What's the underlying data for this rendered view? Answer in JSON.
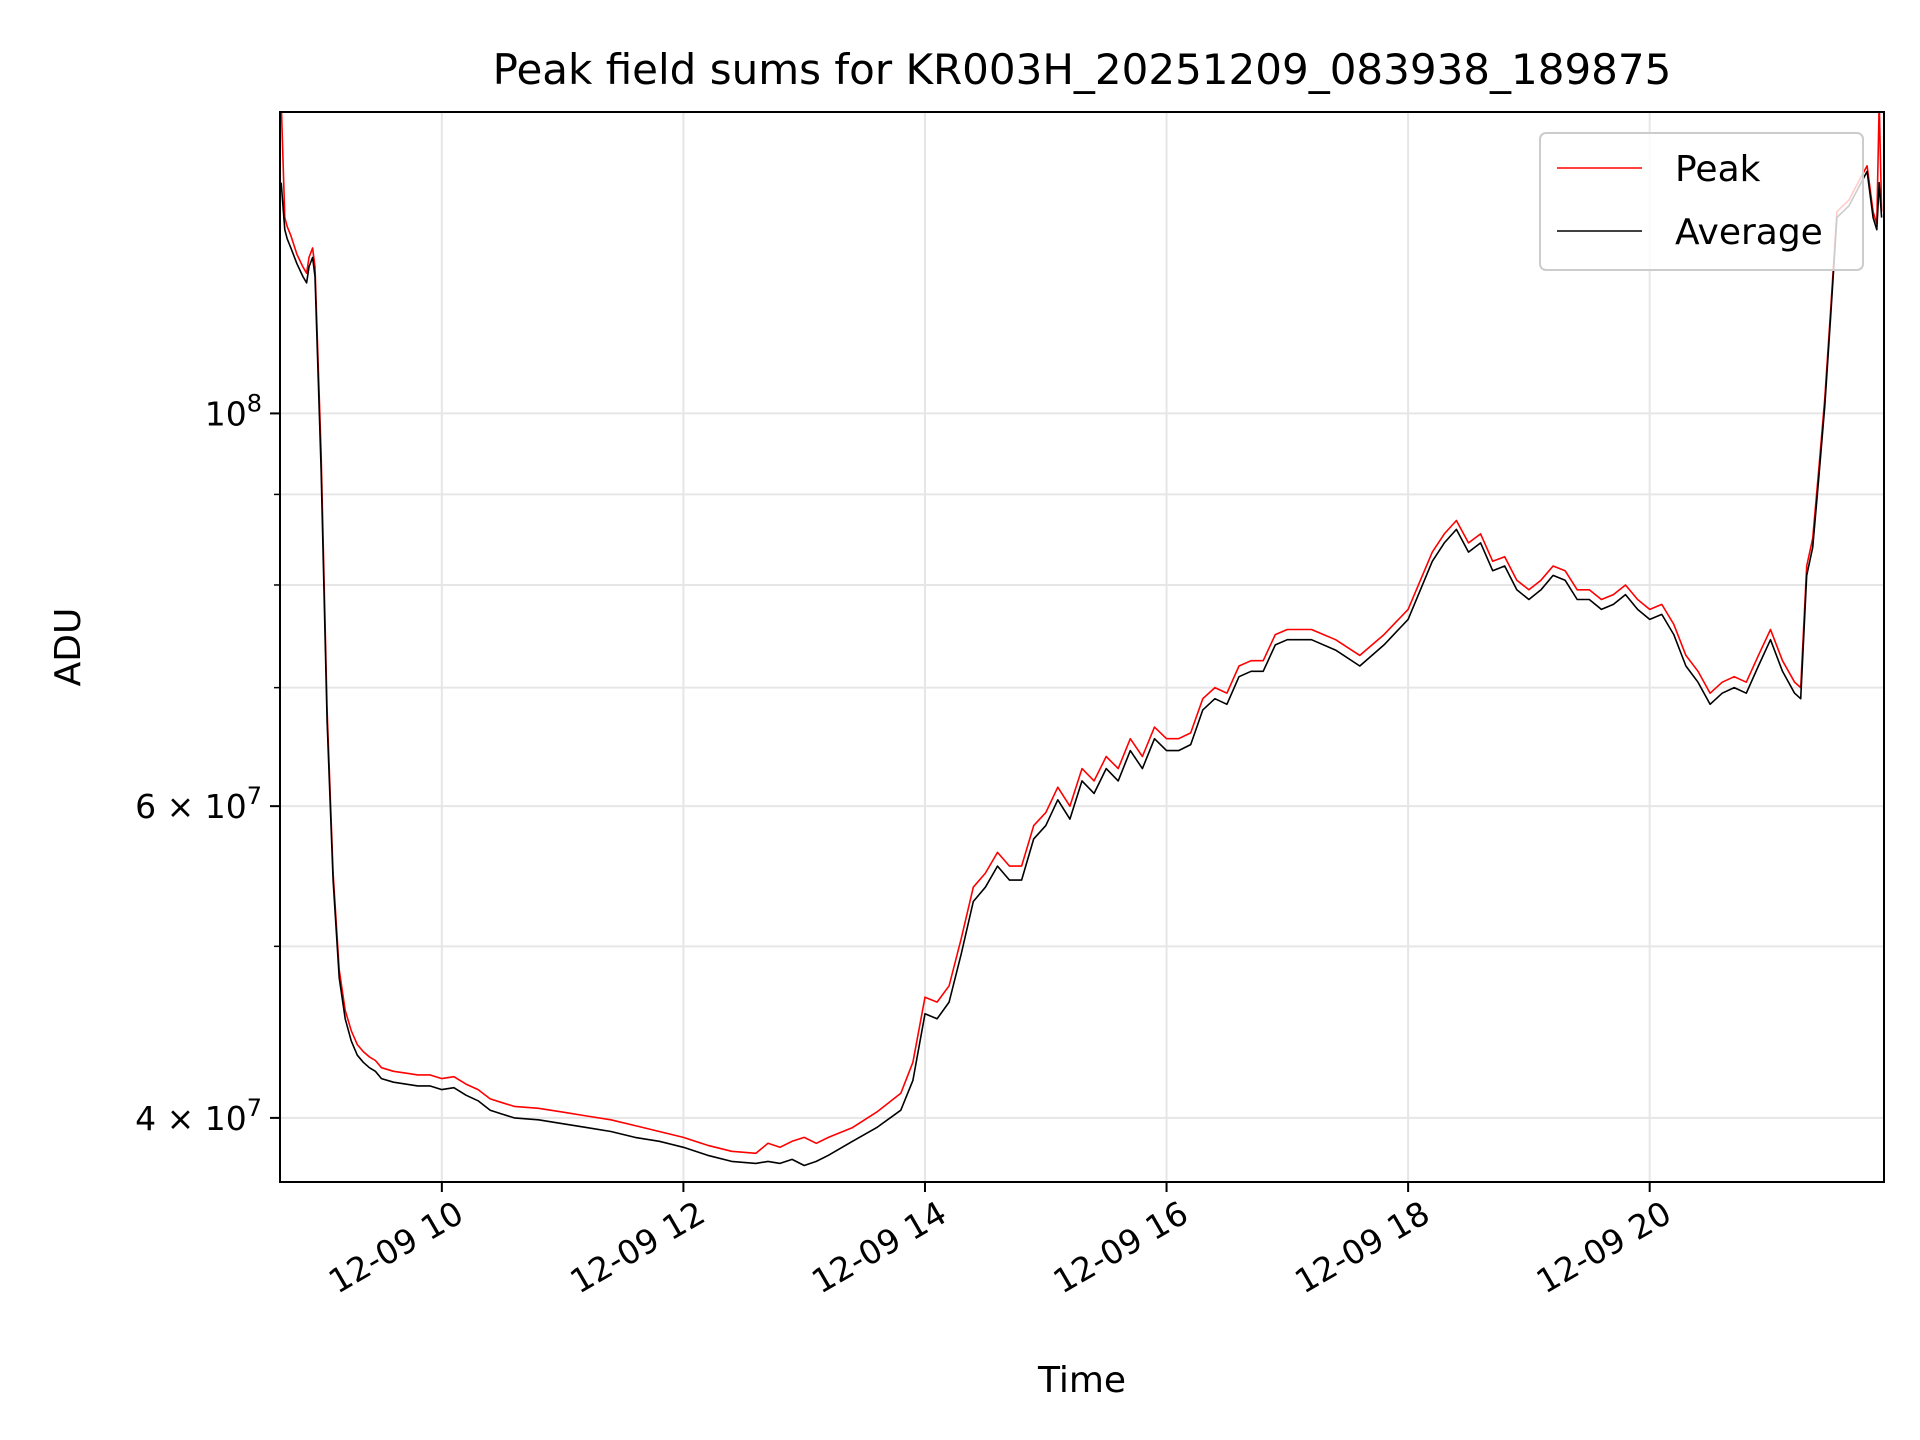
{
  "chart_data": {
    "type": "line",
    "title": "Peak field sums for KR003H_20251209_083938_189875",
    "xlabel": "Time",
    "ylabel": "ADU",
    "yscale": "log",
    "xlim": [
      8.66,
      21.94
    ],
    "ylim": [
      36800000,
      148000000
    ],
    "grid": true,
    "legend_position": "top-right",
    "x_ticks": [
      {
        "x": 10,
        "label": "12-09 10"
      },
      {
        "x": 12,
        "label": "12-09 12"
      },
      {
        "x": 14,
        "label": "12-09 14"
      },
      {
        "x": 16,
        "label": "12-09 16"
      },
      {
        "x": 18,
        "label": "12-09 18"
      },
      {
        "x": 20,
        "label": "12-09 20"
      }
    ],
    "y_major_ticks": [
      {
        "y": 40000000,
        "base": "4 × 10",
        "exp": "7"
      },
      {
        "y": 60000000,
        "base": "6 × 10",
        "exp": "7"
      },
      {
        "y": 100000000,
        "base": "10",
        "exp": "8"
      }
    ],
    "y_minor_ticks": [
      50000000,
      70000000,
      80000000,
      90000000
    ],
    "series": [
      {
        "name": "Peak",
        "color": "#ff0000",
        "x": [
          8.67,
          8.7,
          8.72,
          8.75,
          8.8,
          8.85,
          8.88,
          8.9,
          8.93,
          8.95,
          9.0,
          9.05,
          9.1,
          9.15,
          9.2,
          9.25,
          9.3,
          9.35,
          9.4,
          9.45,
          9.5,
          9.6,
          9.7,
          9.8,
          9.9,
          10.0,
          10.1,
          10.2,
          10.3,
          10.4,
          10.5,
          10.6,
          10.8,
          11.0,
          11.2,
          11.4,
          11.6,
          11.8,
          12.0,
          12.2,
          12.4,
          12.6,
          12.7,
          12.8,
          12.9,
          13.0,
          13.1,
          13.2,
          13.4,
          13.6,
          13.8,
          13.9,
          14.0,
          14.1,
          14.2,
          14.3,
          14.4,
          14.5,
          14.6,
          14.7,
          14.8,
          14.9,
          15.0,
          15.1,
          15.2,
          15.3,
          15.4,
          15.5,
          15.6,
          15.7,
          15.8,
          15.9,
          16.0,
          16.1,
          16.2,
          16.3,
          16.4,
          16.5,
          16.6,
          16.7,
          16.8,
          16.9,
          17.0,
          17.2,
          17.4,
          17.6,
          17.8,
          18.0,
          18.2,
          18.3,
          18.4,
          18.5,
          18.6,
          18.7,
          18.8,
          18.9,
          19.0,
          19.1,
          19.2,
          19.3,
          19.4,
          19.5,
          19.6,
          19.7,
          19.8,
          19.9,
          20.0,
          20.1,
          20.2,
          20.3,
          20.4,
          20.5,
          20.6,
          20.7,
          20.8,
          20.9,
          21.0,
          21.1,
          21.2,
          21.25,
          21.3,
          21.35,
          21.4,
          21.45,
          21.5,
          21.55,
          21.6,
          21.65,
          21.7,
          21.75,
          21.8,
          21.85,
          21.88,
          21.9,
          21.92
        ],
        "y": [
          150000000,
          129000000,
          127500000,
          126000000,
          123000000,
          121000000,
          120000000,
          122500000,
          124000000,
          121000000,
          95000000,
          68000000,
          55000000,
          48500000,
          46000000,
          44800000,
          44000000,
          43600000,
          43300000,
          43100000,
          42700000,
          42500000,
          42400000,
          42300000,
          42300000,
          42100000,
          42200000,
          41800000,
          41500000,
          41000000,
          40800000,
          40600000,
          40500000,
          40300000,
          40100000,
          39900000,
          39600000,
          39300000,
          39000000,
          38600000,
          38300000,
          38200000,
          38700000,
          38500000,
          38800000,
          39000000,
          38700000,
          39000000,
          39500000,
          40300000,
          41300000,
          43000000,
          46800000,
          46500000,
          47500000,
          50500000,
          54000000,
          55000000,
          56500000,
          55500000,
          55500000,
          58500000,
          59500000,
          61500000,
          60000000,
          63000000,
          62000000,
          64000000,
          63000000,
          65500000,
          64000000,
          66500000,
          65500000,
          65500000,
          66000000,
          69000000,
          70000000,
          69500000,
          72000000,
          72500000,
          72500000,
          75000000,
          75500000,
          75500000,
          74500000,
          73000000,
          75000000,
          77500000,
          83500000,
          85500000,
          87000000,
          84500000,
          85500000,
          82500000,
          83000000,
          80500000,
          79500000,
          80500000,
          82000000,
          81500000,
          79500000,
          79500000,
          78500000,
          79000000,
          80000000,
          78500000,
          77500000,
          78000000,
          76000000,
          73000000,
          71500000,
          69500000,
          70500000,
          71000000,
          70500000,
          73000000,
          75500000,
          72500000,
          70500000,
          70000000,
          82000000,
          85000000,
          93000000,
          102000000,
          115000000,
          130000000,
          131000000,
          132000000,
          134000000,
          136000000,
          138000000,
          130000000,
          128000000,
          150000000,
          130000000
        ]
      },
      {
        "name": "Average",
        "color": "#000000",
        "x": [
          8.67,
          8.7,
          8.72,
          8.75,
          8.8,
          8.85,
          8.88,
          8.9,
          8.93,
          8.95,
          9.0,
          9.05,
          9.1,
          9.15,
          9.2,
          9.25,
          9.3,
          9.35,
          9.4,
          9.45,
          9.5,
          9.6,
          9.7,
          9.8,
          9.9,
          10.0,
          10.1,
          10.2,
          10.3,
          10.4,
          10.5,
          10.6,
          10.8,
          11.0,
          11.2,
          11.4,
          11.6,
          11.8,
          12.0,
          12.2,
          12.4,
          12.6,
          12.7,
          12.8,
          12.9,
          13.0,
          13.1,
          13.2,
          13.4,
          13.6,
          13.8,
          13.9,
          14.0,
          14.1,
          14.2,
          14.3,
          14.4,
          14.5,
          14.6,
          14.7,
          14.8,
          14.9,
          15.0,
          15.1,
          15.2,
          15.3,
          15.4,
          15.5,
          15.6,
          15.7,
          15.8,
          15.9,
          16.0,
          16.1,
          16.2,
          16.3,
          16.4,
          16.5,
          16.6,
          16.7,
          16.8,
          16.9,
          17.0,
          17.2,
          17.4,
          17.6,
          17.8,
          18.0,
          18.2,
          18.3,
          18.4,
          18.5,
          18.6,
          18.7,
          18.8,
          18.9,
          19.0,
          19.1,
          19.2,
          19.3,
          19.4,
          19.5,
          19.6,
          19.7,
          19.8,
          19.9,
          20.0,
          20.1,
          20.2,
          20.3,
          20.4,
          20.5,
          20.6,
          20.7,
          20.8,
          20.9,
          21.0,
          21.1,
          21.2,
          21.25,
          21.3,
          21.35,
          21.4,
          21.45,
          21.5,
          21.55,
          21.6,
          21.65,
          21.7,
          21.75,
          21.8,
          21.85,
          21.88,
          21.9,
          21.92
        ],
        "y": [
          135000000,
          127000000,
          125500000,
          124000000,
          121500000,
          119500000,
          118500000,
          121000000,
          122500000,
          119500000,
          93000000,
          67000000,
          54500000,
          48000000,
          45500000,
          44200000,
          43400000,
          43000000,
          42700000,
          42500000,
          42100000,
          41900000,
          41800000,
          41700000,
          41700000,
          41500000,
          41600000,
          41200000,
          40900000,
          40400000,
          40200000,
          40000000,
          39900000,
          39700000,
          39500000,
          39300000,
          39000000,
          38800000,
          38500000,
          38100000,
          37800000,
          37700000,
          37800000,
          37700000,
          37900000,
          37600000,
          37800000,
          38100000,
          38800000,
          39500000,
          40400000,
          42000000,
          45800000,
          45500000,
          46500000,
          49500000,
          53000000,
          54000000,
          55500000,
          54500000,
          54500000,
          57500000,
          58500000,
          60500000,
          59000000,
          62000000,
          61000000,
          63000000,
          62000000,
          64500000,
          63000000,
          65500000,
          64500000,
          64500000,
          65000000,
          68000000,
          69000000,
          68500000,
          71000000,
          71500000,
          71500000,
          74000000,
          74500000,
          74500000,
          73500000,
          72000000,
          74000000,
          76500000,
          82500000,
          84500000,
          86000000,
          83500000,
          84500000,
          81500000,
          82000000,
          79500000,
          78500000,
          79500000,
          81000000,
          80500000,
          78500000,
          78500000,
          77500000,
          78000000,
          79000000,
          77500000,
          76500000,
          77000000,
          75000000,
          72000000,
          70500000,
          68500000,
          69500000,
          70000000,
          69500000,
          72000000,
          74500000,
          71500000,
          69500000,
          69000000,
          81000000,
          84000000,
          92000000,
          101000000,
          114000000,
          129000000,
          130000000,
          131000000,
          133000000,
          135000000,
          137000000,
          129000000,
          127000000,
          135000000,
          129000000
        ]
      }
    ]
  }
}
